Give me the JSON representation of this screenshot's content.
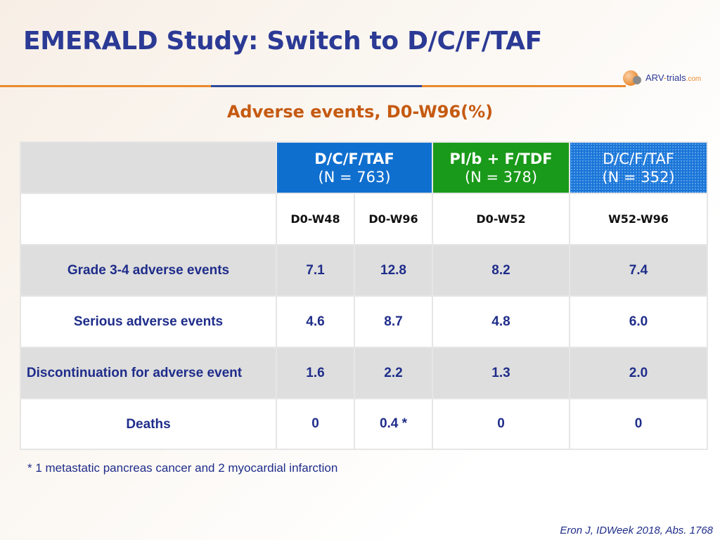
{
  "slide": {
    "title": "EMERALD Study: Switch to D/C/F/TAF",
    "subtitle": "Adverse events, D0-W96(%)",
    "logo": {
      "prefix": "ARV",
      "dash": "-",
      "name": "trials",
      "domain": ".com"
    },
    "footnote": "* 1 metastatic pancreas cancer and 2 myocardial infarction",
    "citation": "Eron J, IDWeek 2018, Abs. 1768"
  },
  "colors": {
    "title": "#2b3a95",
    "subtitle": "#c55a11",
    "arm1": "#0f6fcf",
    "arm2": "#1a9a1a",
    "arm3": "#1b76d8",
    "row_gray": "#dedede",
    "text": "#1f2d8a"
  },
  "table": {
    "arms": [
      {
        "name": "D/C/F/TAF",
        "n": "(N = 763)"
      },
      {
        "name": "PI/b + F/TDF",
        "n": "(N = 378)"
      },
      {
        "name": "D/C/F/TAF",
        "n": "(N = 352)"
      }
    ],
    "periods": [
      "D0-W48",
      "D0-W96",
      "D0-W52",
      "W52-W96"
    ],
    "rows": [
      {
        "label": "Grade 3-4 adverse events",
        "values": [
          "7.1",
          "12.8",
          "8.2",
          "7.4"
        ]
      },
      {
        "label": "Serious adverse events",
        "values": [
          "4.6",
          "8.7",
          "4.8",
          "6.0"
        ]
      },
      {
        "label": "Discontinuation for adverse event",
        "values": [
          "1.6",
          "2.2",
          "1.3",
          "2.0"
        ]
      },
      {
        "label": "Deaths",
        "values": [
          "0",
          "0.4 *",
          "0",
          "0"
        ]
      }
    ]
  }
}
